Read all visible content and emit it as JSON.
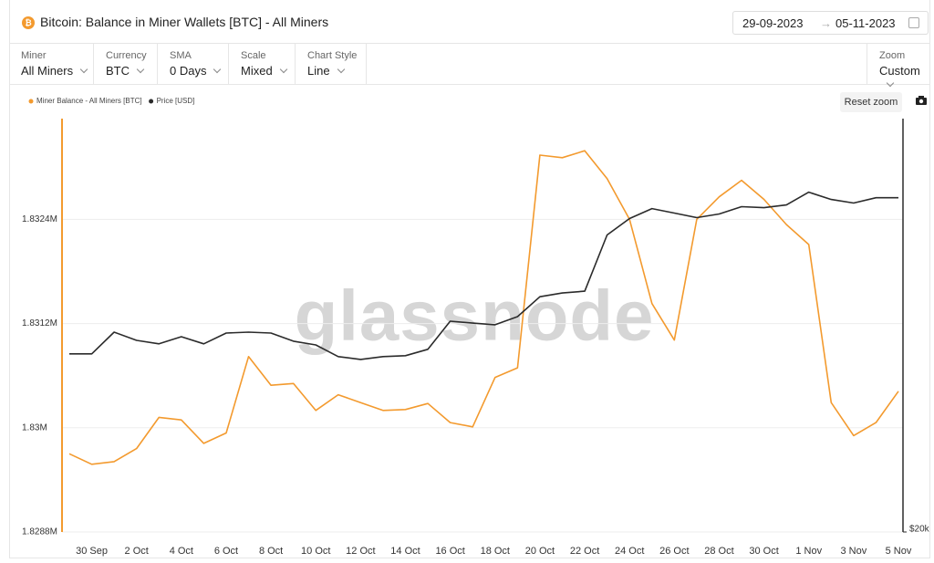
{
  "ui": {
    "title": "Bitcoin: Balance in Miner Wallets [BTC] - All Miners",
    "date_from": "29-09-2023",
    "date_to": "05-11-2023",
    "controls": [
      {
        "label": "Miner",
        "value": "All Miners"
      },
      {
        "label": "Currency",
        "value": "BTC"
      },
      {
        "label": "SMA",
        "value": "0 Days"
      },
      {
        "label": "Scale",
        "value": "Mixed"
      },
      {
        "label": "Chart Style",
        "value": "Line"
      }
    ],
    "zoom": {
      "label": "Zoom",
      "value": "Custom"
    },
    "reset_zoom": "Reset zoom"
  },
  "chart_data": {
    "type": "line",
    "watermark": "glassnode",
    "categories": [
      null,
      "30 Sep",
      null,
      "2 Oct",
      null,
      "4 Oct",
      null,
      "6 Oct",
      null,
      "8 Oct",
      null,
      "10 Oct",
      null,
      "12 Oct",
      null,
      "14 Oct",
      null,
      "16 Oct",
      null,
      "18 Oct",
      null,
      "20 Oct",
      null,
      "22 Oct",
      null,
      "24 Oct",
      null,
      "26 Oct",
      null,
      "28 Oct",
      null,
      "30 Oct",
      null,
      "1 Nov",
      null,
      "3 Nov",
      null,
      "5 Nov"
    ],
    "series": [
      {
        "name": "Miner Balance - All Miners [BTC]",
        "color": "#f39a2e",
        "axis": "y",
        "values": [
          1829700,
          1829580,
          1829610,
          1829760,
          1830120,
          1830090,
          1829820,
          1829940,
          1830820,
          1830490,
          1830510,
          1830200,
          1830380,
          1830290,
          1830200,
          1830210,
          1830280,
          1830060,
          1830010,
          1830580,
          1830690,
          1833140,
          1833110,
          1833190,
          1832870,
          1832400,
          1831430,
          1831010,
          1832400,
          1832660,
          1832850,
          1832630,
          1832340,
          1832110,
          1830290,
          1829910,
          1830060,
          1830420
        ]
      },
      {
        "name": "Price [USD]",
        "color": "#2b2b2b",
        "axis": "y2",
        "values": [
          26960,
          26960,
          27960,
          27580,
          27420,
          27750,
          27420,
          27920,
          27960,
          27920,
          27540,
          27370,
          26840,
          26710,
          26840,
          26880,
          27170,
          28480,
          28390,
          28310,
          28700,
          29670,
          29860,
          29950,
          32910,
          33830,
          34400,
          34140,
          33880,
          34090,
          34510,
          34450,
          34610,
          35360,
          34930,
          34720,
          35030,
          35030
        ]
      }
    ],
    "ylim": [
      1828800,
      1833560
    ],
    "yticks": [
      {
        "value": 1828800,
        "label": "1.8288M"
      },
      {
        "value": 1830000,
        "label": "1.83M"
      },
      {
        "value": 1831200,
        "label": "1.8312M"
      },
      {
        "value": 1832400,
        "label": "1.8324M"
      }
    ],
    "y2lim": [
      20000,
      40000
    ],
    "y2ticks": [
      {
        "value": 20000,
        "label": "$20k"
      }
    ],
    "y2log": true,
    "grid": true,
    "legend": "top-left"
  }
}
